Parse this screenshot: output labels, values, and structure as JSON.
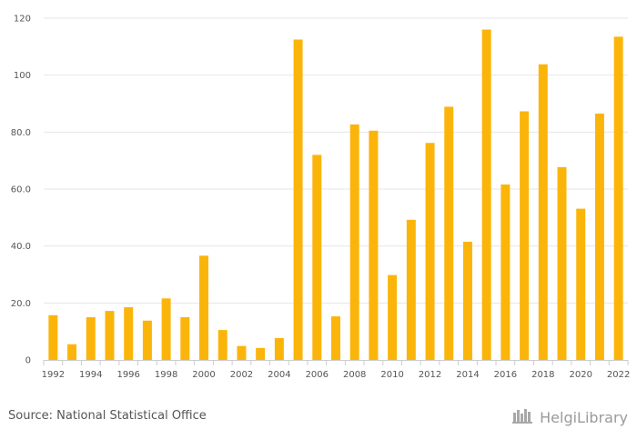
{
  "chart_data": {
    "type": "bar",
    "categories": [
      "1992",
      "1993",
      "1994",
      "1995",
      "1996",
      "1997",
      "1998",
      "1999",
      "2000",
      "2001",
      "2002",
      "2003",
      "2004",
      "2005",
      "2006",
      "2007",
      "2008",
      "2009",
      "2010",
      "2011",
      "2012",
      "2013",
      "2014",
      "2015",
      "2016",
      "2017",
      "2018",
      "2019",
      "2020",
      "2021",
      "2022"
    ],
    "values": [
      15.7,
      5.5,
      15.0,
      17.2,
      18.5,
      13.8,
      21.6,
      15.0,
      36.6,
      10.5,
      4.9,
      4.2,
      7.7,
      112.5,
      72.0,
      15.3,
      82.7,
      80.5,
      29.8,
      49.2,
      76.2,
      88.9,
      41.5,
      116.0,
      61.6,
      87.3,
      103.8,
      67.7,
      53.1,
      86.5,
      113.5
    ],
    "ylim": [
      0,
      120
    ],
    "yticks": [
      0,
      20,
      40,
      60,
      80,
      100,
      120
    ],
    "ytick_labels": [
      "0",
      "20.0",
      "40.0",
      "60.0",
      "80.0",
      "100",
      "120"
    ],
    "xtick_labels": [
      "1992",
      "1994",
      "1996",
      "1998",
      "2000",
      "2002",
      "2004",
      "2006",
      "2008",
      "2010",
      "2012",
      "2014",
      "2016",
      "2018",
      "2020",
      "2022"
    ],
    "bar_color": "#FBB50A",
    "grid": true,
    "title": "",
    "xlabel": "",
    "ylabel": ""
  },
  "footer": {
    "source": "Source: National Statistical Office",
    "brand": "HelgiLibrary",
    "brand_icon": "library-logo-icon"
  }
}
